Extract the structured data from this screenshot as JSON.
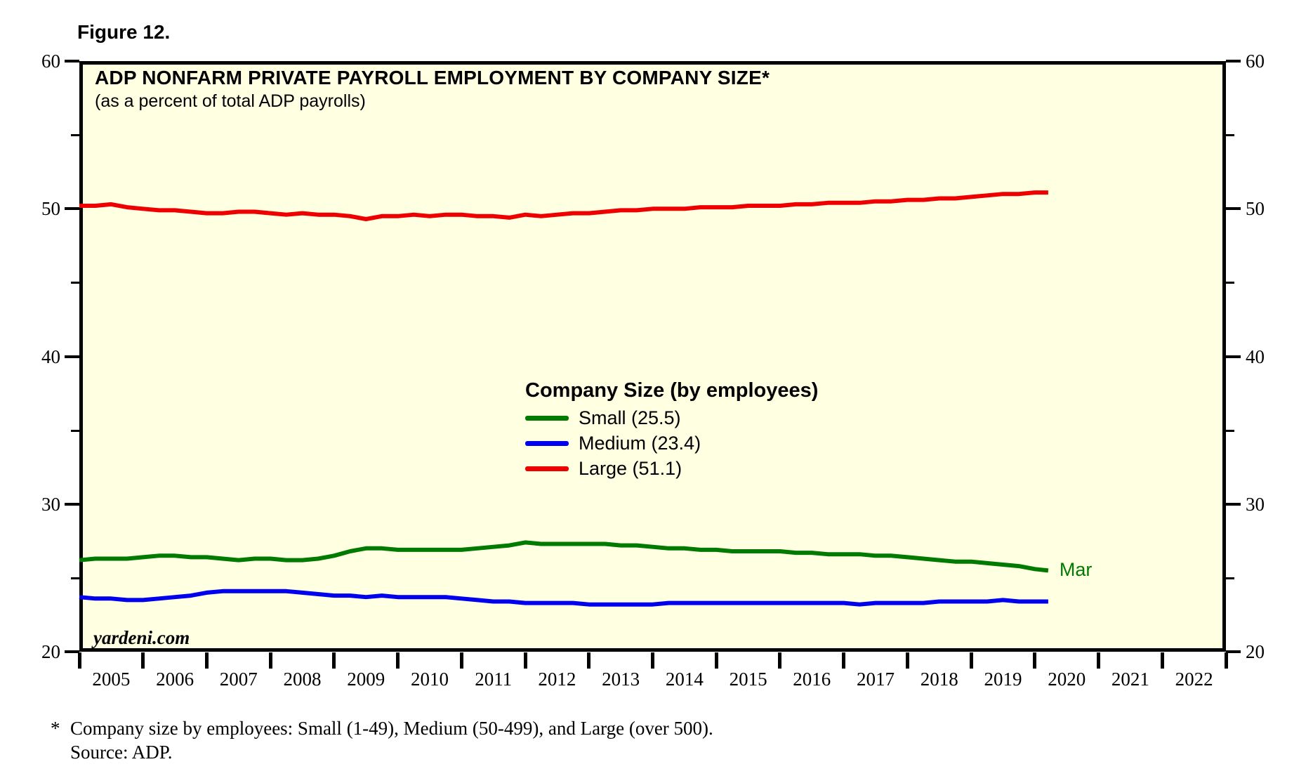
{
  "figure_label": "Figure 12.",
  "chart": {
    "title": "ADP NONFARM PRIVATE PAYROLL EMPLOYMENT BY COMPANY SIZE*",
    "subtitle": "(as a percent of total ADP payrolls)",
    "watermark": "yardeni.com",
    "end_label": "Mar",
    "background_color": "#FFFFE1",
    "legend": {
      "title": "Company Size (by employees)",
      "items": [
        {
          "label": "Small (25.5)",
          "color": "#007A00"
        },
        {
          "label": "Medium (23.4)",
          "color": "#0000EE"
        },
        {
          "label": "Large (51.1)",
          "color": "#EE0000"
        }
      ]
    }
  },
  "footnote": {
    "marker": "*",
    "line1": "Company size by employees: Small (1-49), Medium (50-499), and Large (over 500).",
    "line2": "Source: ADP."
  },
  "chart_data": {
    "type": "line",
    "title": "ADP NONFARM PRIVATE PAYROLL EMPLOYMENT BY COMPANY SIZE (as a percent of total ADP payrolls)",
    "xlabel": "",
    "ylabel": "percent",
    "x_range": [
      2005,
      2023
    ],
    "ylim": [
      20,
      60
    ],
    "y_major_ticks": [
      20,
      30,
      40,
      50,
      60
    ],
    "y_minor_ticks": [
      25,
      35,
      45,
      55
    ],
    "x_tick_years": [
      2005,
      2006,
      2007,
      2008,
      2009,
      2010,
      2011,
      2012,
      2013,
      2014,
      2015,
      2016,
      2017,
      2018,
      2019,
      2020,
      2021,
      2022
    ],
    "grid": false,
    "legend_position": "center",
    "x": [
      2005.0,
      2005.25,
      2005.5,
      2005.75,
      2006.0,
      2006.25,
      2006.5,
      2006.75,
      2007.0,
      2007.25,
      2007.5,
      2007.75,
      2008.0,
      2008.25,
      2008.5,
      2008.75,
      2009.0,
      2009.25,
      2009.5,
      2009.75,
      2010.0,
      2010.25,
      2010.5,
      2010.75,
      2011.0,
      2011.25,
      2011.5,
      2011.75,
      2012.0,
      2012.25,
      2012.5,
      2012.75,
      2013.0,
      2013.25,
      2013.5,
      2013.75,
      2014.0,
      2014.25,
      2014.5,
      2014.75,
      2015.0,
      2015.25,
      2015.5,
      2015.75,
      2016.0,
      2016.25,
      2016.5,
      2016.75,
      2017.0,
      2017.25,
      2017.5,
      2017.75,
      2018.0,
      2018.25,
      2018.5,
      2018.75,
      2019.0,
      2019.25,
      2019.5,
      2019.75,
      2020.0,
      2020.21
    ],
    "series": [
      {
        "name": "Small (1-49)",
        "last_label": "25.5",
        "color": "#007A00",
        "values": [
          26.2,
          26.3,
          26.3,
          26.3,
          26.4,
          26.5,
          26.5,
          26.4,
          26.4,
          26.3,
          26.2,
          26.3,
          26.3,
          26.2,
          26.2,
          26.3,
          26.5,
          26.8,
          27.0,
          27.0,
          26.9,
          26.9,
          26.9,
          26.9,
          26.9,
          27.0,
          27.1,
          27.2,
          27.4,
          27.3,
          27.3,
          27.3,
          27.3,
          27.3,
          27.2,
          27.2,
          27.1,
          27.0,
          27.0,
          26.9,
          26.9,
          26.8,
          26.8,
          26.8,
          26.8,
          26.7,
          26.7,
          26.6,
          26.6,
          26.6,
          26.5,
          26.5,
          26.4,
          26.3,
          26.2,
          26.1,
          26.1,
          26.0,
          25.9,
          25.8,
          25.6,
          25.5
        ]
      },
      {
        "name": "Medium (50-499)",
        "last_label": "23.4",
        "color": "#0000EE",
        "values": [
          23.7,
          23.6,
          23.6,
          23.5,
          23.5,
          23.6,
          23.7,
          23.8,
          24.0,
          24.1,
          24.1,
          24.1,
          24.1,
          24.1,
          24.0,
          23.9,
          23.8,
          23.8,
          23.7,
          23.8,
          23.7,
          23.7,
          23.7,
          23.7,
          23.6,
          23.5,
          23.4,
          23.4,
          23.3,
          23.3,
          23.3,
          23.3,
          23.2,
          23.2,
          23.2,
          23.2,
          23.2,
          23.3,
          23.3,
          23.3,
          23.3,
          23.3,
          23.3,
          23.3,
          23.3,
          23.3,
          23.3,
          23.3,
          23.3,
          23.2,
          23.3,
          23.3,
          23.3,
          23.3,
          23.4,
          23.4,
          23.4,
          23.4,
          23.5,
          23.4,
          23.4,
          23.4
        ]
      },
      {
        "name": "Large (over 500)",
        "last_label": "51.1",
        "color": "#EE0000",
        "values": [
          50.2,
          50.2,
          50.3,
          50.1,
          50.0,
          49.9,
          49.9,
          49.8,
          49.7,
          49.7,
          49.8,
          49.8,
          49.7,
          49.6,
          49.7,
          49.6,
          49.6,
          49.5,
          49.3,
          49.5,
          49.5,
          49.6,
          49.5,
          49.6,
          49.6,
          49.5,
          49.5,
          49.4,
          49.6,
          49.5,
          49.6,
          49.7,
          49.7,
          49.8,
          49.9,
          49.9,
          50.0,
          50.0,
          50.0,
          50.1,
          50.1,
          50.1,
          50.2,
          50.2,
          50.2,
          50.3,
          50.3,
          50.4,
          50.4,
          50.4,
          50.5,
          50.5,
          50.6,
          50.6,
          50.7,
          50.7,
          50.8,
          50.9,
          51.0,
          51.0,
          51.1,
          51.1
        ]
      }
    ]
  }
}
